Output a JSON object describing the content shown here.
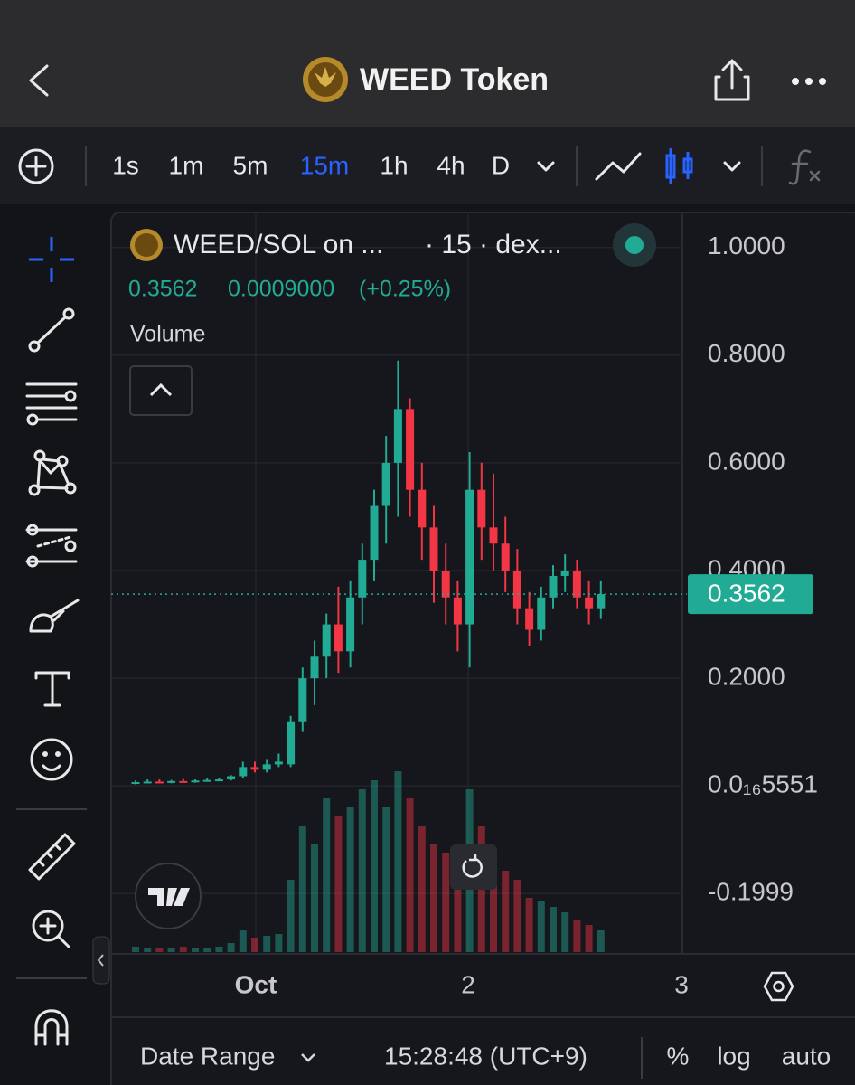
{
  "header": {
    "title": "WEED Token"
  },
  "toolbar": {
    "intervals": [
      "1s",
      "1m",
      "5m",
      "15m",
      "1h",
      "4h",
      "D"
    ],
    "active_interval": "15m"
  },
  "chart_data": {
    "type": "candlestick",
    "symbol": "WEED/SOL on ...",
    "interval_info": "· 15 · dex...",
    "last_price": 0.3562,
    "change": "0.0009000",
    "change_percent": "(+0.25%)",
    "volume_label": "Volume",
    "up_color": "#22ab94",
    "down_color": "#f23645",
    "ylim": [
      -0.312,
      1.065
    ],
    "yticks": [
      {
        "value": 1,
        "label": "1.0000"
      },
      {
        "value": 0.8,
        "label": "0.8000"
      },
      {
        "value": 0.6,
        "label": "0.6000"
      },
      {
        "value": 0.4,
        "label": "0.4000"
      },
      {
        "value": 0.2,
        "label": "0.2000"
      },
      {
        "value": 5.551e-17,
        "label": "0.0₁₆5551"
      },
      -0.1999
    ],
    "x_labels": [
      "Oct",
      "2",
      "3"
    ],
    "open": [
      0.005,
      0.007,
      0.008,
      0.007,
      0.009,
      0.008,
      0.01,
      0.011,
      0.012,
      0.018,
      0.035,
      0.03,
      0.04,
      0.04,
      0.12,
      0.2,
      0.24,
      0.3,
      0.25,
      0.35,
      0.42,
      0.52,
      0.6,
      0.7,
      0.55,
      0.48,
      0.4,
      0.35,
      0.3,
      0.55,
      0.48,
      0.45,
      0.4,
      0.33,
      0.29,
      0.35,
      0.39,
      0.4,
      0.35,
      0.33
    ],
    "high": [
      0.01,
      0.012,
      0.012,
      0.011,
      0.013,
      0.012,
      0.014,
      0.015,
      0.02,
      0.045,
      0.045,
      0.05,
      0.06,
      0.13,
      0.22,
      0.27,
      0.32,
      0.37,
      0.38,
      0.45,
      0.55,
      0.65,
      0.79,
      0.72,
      0.6,
      0.52,
      0.45,
      0.38,
      0.62,
      0.6,
      0.58,
      0.5,
      0.44,
      0.36,
      0.37,
      0.41,
      0.43,
      0.42,
      0.38,
      0.38
    ],
    "low": [
      0.003,
      0.005,
      0.006,
      0.005,
      0.007,
      0.006,
      0.008,
      0.009,
      0.01,
      0.015,
      0.025,
      0.025,
      0.035,
      0.035,
      0.1,
      0.15,
      0.2,
      0.21,
      0.22,
      0.3,
      0.38,
      0.45,
      0.5,
      0.5,
      0.42,
      0.34,
      0.3,
      0.25,
      0.22,
      0.42,
      0.4,
      0.36,
      0.3,
      0.26,
      0.27,
      0.33,
      0.36,
      0.33,
      0.3,
      0.31
    ],
    "close": [
      0.007,
      0.008,
      0.007,
      0.009,
      0.008,
      0.01,
      0.011,
      0.012,
      0.018,
      0.035,
      0.03,
      0.04,
      0.045,
      0.12,
      0.2,
      0.24,
      0.3,
      0.25,
      0.35,
      0.42,
      0.52,
      0.6,
      0.7,
      0.55,
      0.48,
      0.4,
      0.35,
      0.3,
      0.55,
      0.48,
      0.45,
      0.4,
      0.33,
      0.29,
      0.35,
      0.39,
      0.4,
      0.35,
      0.33,
      0.3562
    ],
    "volume": [
      3,
      2,
      2,
      2,
      3,
      2,
      2,
      3,
      5,
      12,
      8,
      9,
      10,
      40,
      70,
      60,
      85,
      75,
      80,
      90,
      95,
      80,
      100,
      85,
      70,
      60,
      55,
      50,
      90,
      70,
      55,
      45,
      40,
      30,
      28,
      25,
      22,
      18,
      15,
      12
    ]
  },
  "footer": {
    "date_range": "Date Range",
    "time": "15:28:48 (UTC+9)",
    "options": [
      "%",
      "log",
      "auto"
    ]
  }
}
